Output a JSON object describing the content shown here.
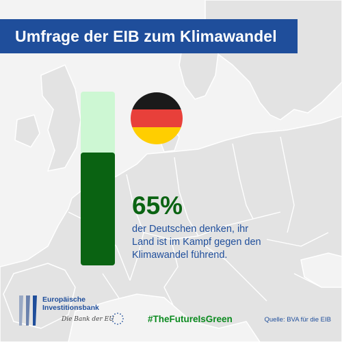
{
  "title": "Umfrage der EIB zum Klimawandel",
  "stat": {
    "percent_label": "65%",
    "value": 0.65,
    "description": "der Deutschen denken, ihr Land ist im Kampf gegen den Klimawandel führend."
  },
  "flag": {
    "country": "Deutschland",
    "colors": [
      "#1a1a1a",
      "#e8403a",
      "#ffce00"
    ]
  },
  "logo": {
    "line1": "Europäische",
    "line2": "Investitionsbank",
    "tagline": "Die Bank der EU"
  },
  "hashtag": "#TheFutureIsGreen",
  "source": "Quelle: BVA für die EIB",
  "colors": {
    "brand_blue": "#1f4e9b",
    "green_dark": "#0a6312",
    "green_light": "#cdf7d3",
    "hashtag_green": "#0a8a1e",
    "map_land": "#e2e2e2",
    "map_sea": "#f2f2f2"
  }
}
